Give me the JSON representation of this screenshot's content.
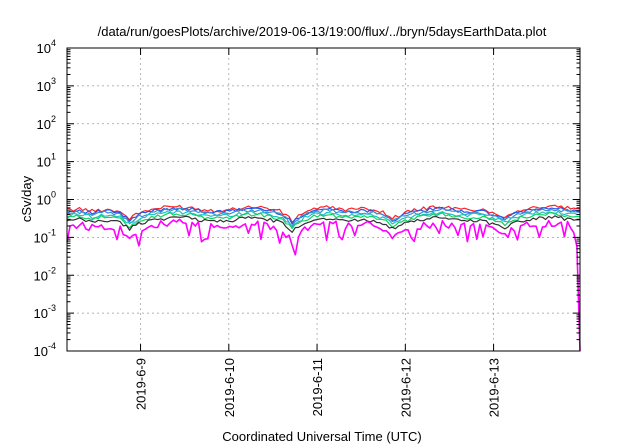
{
  "chart_data": {
    "type": "line",
    "title": "/data/run/goesPlots/archive/2019-06-13/19:00/flux/../bryn/5daysEarthData.plot",
    "xlabel": "Coordinated Universal Time (UTC)",
    "ylabel": "cSv/day",
    "yscale": "log",
    "ylim": [
      0.0001,
      10000
    ],
    "y_ticks": [
      {
        "base": "10",
        "exp": "-4",
        "value": 0.0001
      },
      {
        "base": "10",
        "exp": "-3",
        "value": 0.001
      },
      {
        "base": "10",
        "exp": "-2",
        "value": 0.01
      },
      {
        "base": "10",
        "exp": "-1",
        "value": 0.1
      },
      {
        "base": "10",
        "exp": "0",
        "value": 1
      },
      {
        "base": "10",
        "exp": "1",
        "value": 10
      },
      {
        "base": "10",
        "exp": "2",
        "value": 100
      },
      {
        "base": "10",
        "exp": "3",
        "value": 1000
      },
      {
        "base": "10",
        "exp": "4",
        "value": 10000
      }
    ],
    "xlim": [
      "2019-06-08 04:00",
      "2019-06-13 23:30"
    ],
    "x_ticks": [
      "2019-6-9",
      "2019-6-10",
      "2019-6-11",
      "2019-6-12",
      "2019-6-13"
    ],
    "x_tick_dates": [
      "2019-06-09",
      "2019-06-10",
      "2019-06-11",
      "2019-06-12",
      "2019-06-13"
    ],
    "grid": true,
    "legend": "none",
    "series_colors": [
      "#ff2020",
      "#2255ee",
      "#3a8fd0",
      "#20c0c0",
      "#10d060",
      "#303030",
      "#ff00ff"
    ],
    "series": [
      {
        "color": "#ff2020",
        "values": [
          0.52,
          0.58,
          0.5,
          0.55,
          0.52,
          0.32,
          0.48,
          0.57,
          0.64,
          0.66,
          0.61,
          0.54,
          0.52,
          0.54,
          0.62,
          0.66,
          0.59,
          0.5,
          0.27,
          0.48,
          0.6,
          0.63,
          0.56,
          0.55,
          0.58,
          0.51,
          0.32,
          0.45,
          0.55,
          0.62,
          0.64,
          0.58,
          0.54,
          0.56,
          0.45,
          0.36,
          0.5,
          0.6,
          0.64,
          0.65,
          0.6,
          0.56
        ]
      },
      {
        "color": "#2255ee",
        "values": [
          0.47,
          0.53,
          0.45,
          0.5,
          0.47,
          0.28,
          0.43,
          0.52,
          0.58,
          0.6,
          0.55,
          0.49,
          0.47,
          0.49,
          0.56,
          0.6,
          0.53,
          0.45,
          0.24,
          0.43,
          0.54,
          0.57,
          0.5,
          0.5,
          0.52,
          0.46,
          0.28,
          0.4,
          0.5,
          0.56,
          0.58,
          0.52,
          0.49,
          0.5,
          0.4,
          0.32,
          0.45,
          0.54,
          0.58,
          0.59,
          0.54,
          0.5
        ]
      },
      {
        "color": "#3a8fd0",
        "values": [
          0.43,
          0.48,
          0.41,
          0.45,
          0.43,
          0.26,
          0.39,
          0.47,
          0.53,
          0.54,
          0.5,
          0.44,
          0.43,
          0.45,
          0.51,
          0.54,
          0.48,
          0.41,
          0.22,
          0.39,
          0.49,
          0.52,
          0.46,
          0.45,
          0.47,
          0.42,
          0.26,
          0.37,
          0.45,
          0.51,
          0.53,
          0.47,
          0.44,
          0.46,
          0.37,
          0.29,
          0.41,
          0.49,
          0.53,
          0.53,
          0.49,
          0.46
        ]
      },
      {
        "color": "#20c0c0",
        "values": [
          0.37,
          0.42,
          0.36,
          0.39,
          0.37,
          0.23,
          0.34,
          0.41,
          0.46,
          0.47,
          0.44,
          0.39,
          0.37,
          0.39,
          0.44,
          0.47,
          0.42,
          0.36,
          0.19,
          0.34,
          0.43,
          0.45,
          0.4,
          0.39,
          0.41,
          0.36,
          0.23,
          0.32,
          0.39,
          0.44,
          0.46,
          0.41,
          0.39,
          0.4,
          0.32,
          0.26,
          0.36,
          0.43,
          0.46,
          0.46,
          0.43,
          0.4
        ]
      },
      {
        "color": "#10d060",
        "values": [
          0.33,
          0.37,
          0.32,
          0.35,
          0.33,
          0.2,
          0.3,
          0.36,
          0.41,
          0.42,
          0.39,
          0.34,
          0.33,
          0.34,
          0.39,
          0.42,
          0.37,
          0.32,
          0.17,
          0.3,
          0.38,
          0.4,
          0.36,
          0.35,
          0.37,
          0.32,
          0.2,
          0.28,
          0.35,
          0.39,
          0.41,
          0.37,
          0.34,
          0.36,
          0.28,
          0.23,
          0.32,
          0.38,
          0.41,
          0.41,
          0.38,
          0.35
        ]
      },
      {
        "color": "#303030",
        "values": [
          0.27,
          0.3,
          0.26,
          0.28,
          0.27,
          0.17,
          0.25,
          0.3,
          0.33,
          0.34,
          0.32,
          0.28,
          0.27,
          0.28,
          0.32,
          0.34,
          0.3,
          0.26,
          0.14,
          0.25,
          0.31,
          0.33,
          0.29,
          0.28,
          0.3,
          0.26,
          0.17,
          0.23,
          0.28,
          0.32,
          0.33,
          0.3,
          0.28,
          0.29,
          0.23,
          0.19,
          0.26,
          0.31,
          0.33,
          0.34,
          0.31,
          0.29
        ]
      },
      {
        "color": "#ff00ff",
        "values": [
          0.2,
          0.22,
          0.19,
          0.21,
          0.2,
          0.1,
          0.18,
          0.22,
          0.24,
          0.25,
          0.23,
          0.2,
          0.2,
          0.21,
          0.23,
          0.25,
          0.22,
          0.19,
          0.07,
          0.18,
          0.22,
          0.24,
          0.21,
          0.21,
          0.22,
          0.19,
          0.09,
          0.17,
          0.21,
          0.23,
          0.24,
          0.22,
          0.2,
          0.21,
          0.17,
          0.11,
          0.19,
          0.22,
          0.24,
          0.25,
          0.23,
          0.0001
        ]
      }
    ]
  }
}
